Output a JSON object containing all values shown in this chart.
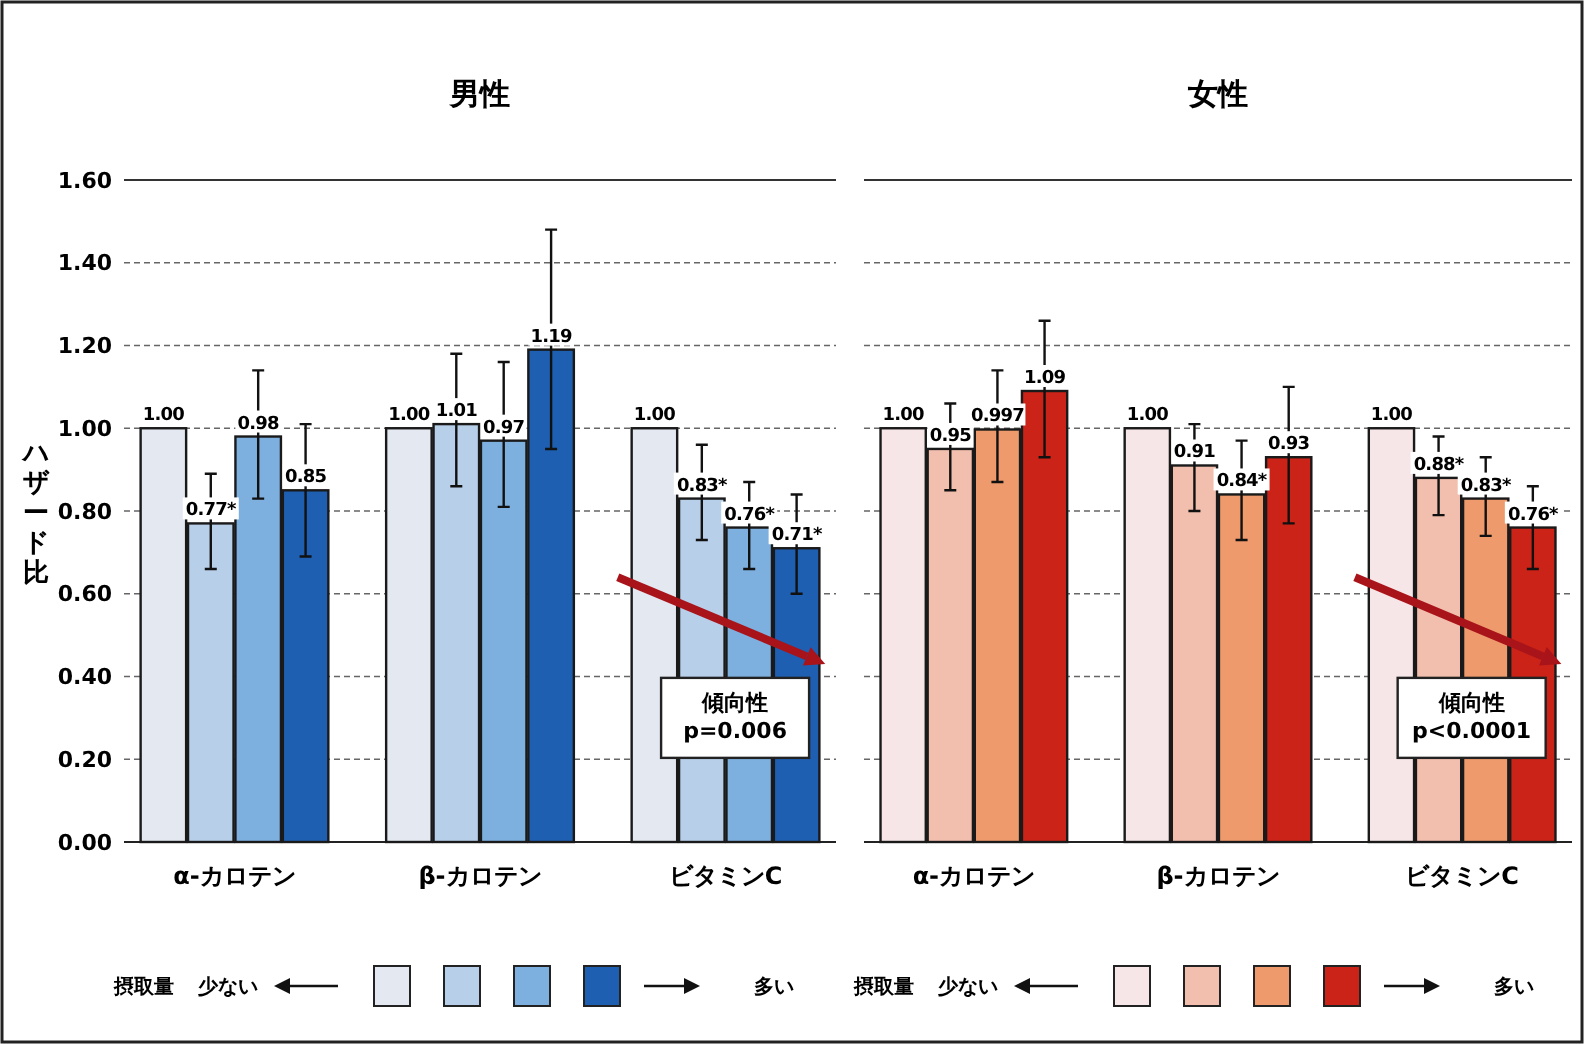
{
  "chart_data": [
    {
      "type": "bar",
      "title": "男性",
      "ylabel": "ハザード比",
      "categories": [
        "α-カロテン",
        "β-カロテン",
        "ビタミンC"
      ],
      "ylim": [
        0,
        1.6
      ],
      "yticks": [
        {
          "value": 0,
          "label": "0.00"
        },
        {
          "value": 0.2,
          "label": "0.20"
        },
        {
          "value": 0.4,
          "label": "0.40"
        },
        {
          "value": 0.6,
          "label": "0.60"
        },
        {
          "value": 0.8,
          "label": "0.80"
        },
        {
          "value": 1,
          "label": "1.00"
        },
        {
          "value": 1.2,
          "label": "1.20"
        },
        {
          "value": 1.4,
          "label": "1.40"
        },
        {
          "value": 1.6,
          "label": "1.60"
        }
      ],
      "grid": "y",
      "legend_title": "摂取量",
      "series": [
        {
          "color": "#e3e8f1",
          "values": [
            1.0,
            1.0,
            1.0
          ],
          "value_labels": [
            "1.00",
            "1.00",
            "1.00"
          ]
        },
        {
          "color": "#b8cfea",
          "values": [
            0.77,
            1.01,
            0.83
          ],
          "value_labels": [
            "0.77*",
            "1.01",
            "0.83*"
          ],
          "errors": [
            [
              0.66,
              0.89
            ],
            [
              0.86,
              1.18
            ],
            [
              0.73,
              0.96
            ]
          ]
        },
        {
          "color": "#7eb0df",
          "values": [
            0.98,
            0.97,
            0.76
          ],
          "value_labels": [
            "0.98",
            "0.97",
            "0.76*"
          ],
          "errors": [
            [
              0.83,
              1.14
            ],
            [
              0.81,
              1.16
            ],
            [
              0.66,
              0.87
            ]
          ]
        },
        {
          "color": "#1e5fb2",
          "values": [
            0.85,
            1.19,
            0.71
          ],
          "value_labels": [
            "0.85",
            "1.19",
            "0.71*"
          ],
          "errors": [
            [
              0.69,
              1.01
            ],
            [
              0.95,
              1.48
            ],
            [
              0.6,
              0.84
            ]
          ]
        }
      ],
      "annotations": [
        "少ない",
        "多い",
        {
          "text": "傾向性\np=0.006",
          "x": "ビタミンC",
          "y": 0.3
        }
      ]
    },
    {
      "type": "bar",
      "title": "女性",
      "categories": [
        "α-カロテン",
        "β-カロテン",
        "ビタミンC"
      ],
      "ylim": [
        0,
        1.6
      ],
      "grid": "y",
      "tick_labels": "x",
      "legend_title": "摂取量",
      "series": [
        {
          "color": "#f7e6e8",
          "values": [
            1.0,
            1.0,
            1.0
          ],
          "value_labels": [
            "1.00",
            "1.00",
            "1.00"
          ]
        },
        {
          "color": "#f2bfae",
          "values": [
            0.95,
            0.91,
            0.88
          ],
          "value_labels": [
            "0.95",
            "0.91",
            "0.88*"
          ],
          "errors": [
            [
              0.85,
              1.06
            ],
            [
              0.8,
              1.01
            ],
            [
              0.79,
              0.98
            ]
          ]
        },
        {
          "color": "#ef9a6c",
          "values": [
            0.997,
            0.84,
            0.83
          ],
          "value_labels": [
            "0.997",
            "0.84*",
            "0.83*"
          ],
          "errors": [
            [
              0.87,
              1.14
            ],
            [
              0.73,
              0.97
            ],
            [
              0.74,
              0.93
            ]
          ]
        },
        {
          "color": "#cb2317",
          "values": [
            1.09,
            0.93,
            0.76
          ],
          "value_labels": [
            "1.09",
            "0.93",
            "0.76*"
          ],
          "errors": [
            [
              0.93,
              1.26
            ],
            [
              0.77,
              1.1
            ],
            [
              0.66,
              0.86
            ]
          ]
        }
      ],
      "annotations": [
        "少ない",
        "多い",
        {
          "text": "傾向性\np<0.0001",
          "x": "ビタミンC",
          "y": 0.3
        }
      ]
    }
  ]
}
